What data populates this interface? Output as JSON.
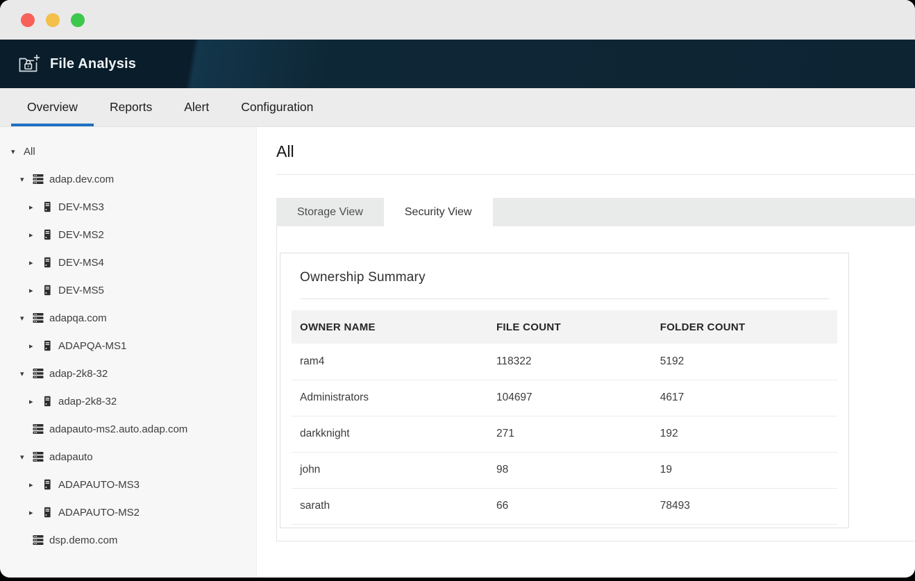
{
  "window": {
    "controls": [
      {
        "name": "close-button",
        "color": "#f8615a"
      },
      {
        "name": "minimize-button",
        "color": "#f2c04b"
      },
      {
        "name": "zoom-button",
        "color": "#3cc84c"
      }
    ]
  },
  "app_header": {
    "title": "File Analysis",
    "icon": "folder-lock-add-icon"
  },
  "nav": {
    "tabs": [
      {
        "label": "Overview",
        "active": true
      },
      {
        "label": "Reports",
        "active": false
      },
      {
        "label": "Alert",
        "active": false
      },
      {
        "label": "Configuration",
        "active": false
      }
    ]
  },
  "sidebar": {
    "tree": [
      {
        "label": "All",
        "level": 0,
        "caret": "down",
        "icon": null
      },
      {
        "label": "adap.dev.com",
        "level": 1,
        "caret": "down",
        "icon": "domain-server-icon"
      },
      {
        "label": "DEV-MS3",
        "level": 2,
        "caret": "right",
        "icon": "server-icon"
      },
      {
        "label": "DEV-MS2",
        "level": 2,
        "caret": "right",
        "icon": "server-icon"
      },
      {
        "label": "DEV-MS4",
        "level": 2,
        "caret": "right",
        "icon": "server-icon"
      },
      {
        "label": "DEV-MS5",
        "level": 2,
        "caret": "right",
        "icon": "server-icon"
      },
      {
        "label": "adapqa.com",
        "level": 1,
        "caret": "down",
        "icon": "domain-server-icon"
      },
      {
        "label": "ADAPQA-MS1",
        "level": 2,
        "caret": "right",
        "icon": "server-icon"
      },
      {
        "label": "adap-2k8-32",
        "level": 1,
        "caret": "down",
        "icon": "domain-server-icon"
      },
      {
        "label": "adap-2k8-32",
        "level": 2,
        "caret": "right",
        "icon": "server-icon"
      },
      {
        "label": "adapauto-ms2.auto.adap.com",
        "level": 1,
        "caret": null,
        "icon": "domain-server-icon"
      },
      {
        "label": "adapauto",
        "level": 1,
        "caret": "down",
        "icon": "domain-server-icon"
      },
      {
        "label": "ADAPAUTO-MS3",
        "level": 2,
        "caret": "right",
        "icon": "server-icon"
      },
      {
        "label": "ADAPAUTO-MS2",
        "level": 2,
        "caret": "right",
        "icon": "server-icon"
      },
      {
        "label": "dsp.demo.com",
        "level": 1,
        "caret": null,
        "icon": "domain-server-icon"
      }
    ]
  },
  "main": {
    "heading": "All",
    "view_tabs": [
      {
        "label": "Storage View",
        "active": false
      },
      {
        "label": "Security View",
        "active": true
      }
    ],
    "card": {
      "title": "Ownership Summary",
      "table": {
        "columns": [
          "OWNER NAME",
          "FILE COUNT",
          "FOLDER COUNT"
        ],
        "rows": [
          [
            "ram4",
            "118322",
            "5192"
          ],
          [
            "Administrators",
            "104697",
            "4617"
          ],
          [
            "darkknight",
            "271",
            "192"
          ],
          [
            "john",
            "98",
            "19"
          ],
          [
            "sarath",
            "66",
            "78493"
          ]
        ]
      }
    }
  },
  "colors": {
    "accent_blue": "#1d70c2",
    "header_navy": "#0d2433",
    "tab_strip_gray": "#e9ebeb"
  }
}
